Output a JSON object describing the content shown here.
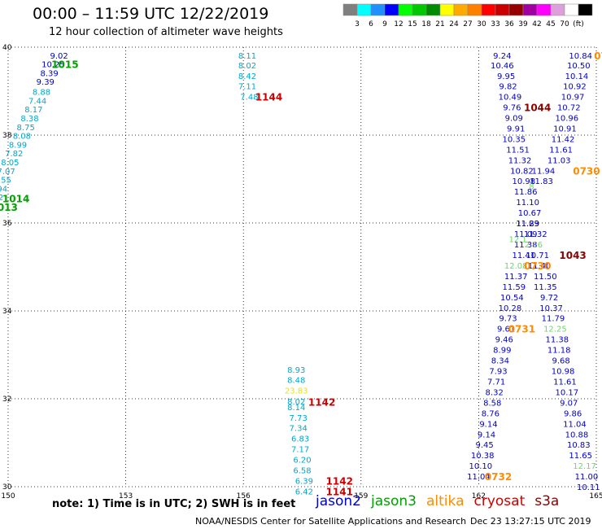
{
  "title": "00:00 – 11:59 UTC 12/22/2019",
  "subtitle": "12 hour collection of altimeter wave heights",
  "colorbar": {
    "colors": [
      "#7f7f7f",
      "#00ffff",
      "#1e90ff",
      "#0000ff",
      "#00ff00",
      "#00c800",
      "#008c00",
      "#ffff00",
      "#ffaa00",
      "#ff7f00",
      "#ff0000",
      "#c80000",
      "#960000",
      "#a000a0",
      "#ff00ff",
      "#dda0dd",
      "#ffffff",
      "#000000"
    ],
    "labels": [
      "3",
      "6",
      "9",
      "12",
      "15",
      "18",
      "21",
      "24",
      "27",
      "30",
      "33",
      "36",
      "39",
      "42",
      "45",
      "70",
      "(ft)"
    ]
  },
  "axes": {
    "lat_labels": [
      "40",
      "38",
      "36",
      "34",
      "32",
      "30"
    ],
    "lon_labels": [
      "150",
      "153",
      "156",
      "159",
      "162",
      "165"
    ],
    "lat_range": [
      30,
      40
    ],
    "lon_range": [
      150,
      165
    ]
  },
  "colors": {
    "jason2": "#0000cc",
    "jason3": "#00a000",
    "altika": "#ff8c00",
    "cryosat": "#cc0000",
    "s3a": "#8b0000",
    "cyan": "#00a8cc",
    "lightgreen": "#66dd66",
    "yellow": "#e6e600",
    "darkgreen": "#007000"
  },
  "tracks": [
    {
      "sat": "jason2",
      "points": [
        {
          "lon": 151.3,
          "lat": 39.8,
          "v": "9.02"
        },
        {
          "lon": 151.15,
          "lat": 39.6,
          "v": "10.25"
        },
        {
          "lon": 151.05,
          "lat": 39.4,
          "v": "8.39"
        },
        {
          "lon": 150.95,
          "lat": 39.2,
          "v": "9.39"
        }
      ]
    },
    {
      "sat": "cyan",
      "points": [
        {
          "lon": 150.85,
          "lat": 38.97,
          "v": "8.88"
        },
        {
          "lon": 150.75,
          "lat": 38.77,
          "v": "7.44"
        },
        {
          "lon": 150.65,
          "lat": 38.57,
          "v": "8.17"
        },
        {
          "lon": 150.55,
          "lat": 38.37,
          "v": "8.38"
        },
        {
          "lon": 150.45,
          "lat": 38.17,
          "v": "8.75"
        },
        {
          "lon": 150.35,
          "lat": 37.97,
          "v": "8.08"
        },
        {
          "lon": 150.25,
          "lat": 37.77,
          "v": "8.99"
        },
        {
          "lon": 150.15,
          "lat": 37.57,
          "v": "7.82"
        },
        {
          "lon": 150.05,
          "lat": 37.37,
          "v": "8.05"
        },
        {
          "lon": 149.95,
          "lat": 37.17,
          "v": "7.07"
        },
        {
          "lon": 149.85,
          "lat": 36.97,
          "v": "7.55"
        },
        {
          "lon": 149.75,
          "lat": 36.77,
          "v": "6.94"
        },
        {
          "lon": 149.65,
          "lat": 36.57,
          "v": "7.52"
        },
        {
          "lon": 149.55,
          "lat": 36.37,
          "v": "7.29"
        },
        {
          "lon": 156.1,
          "lat": 39.8,
          "v": "8.11"
        },
        {
          "lon": 156.1,
          "lat": 39.57,
          "v": "8.02"
        },
        {
          "lon": 156.1,
          "lat": 39.33,
          "v": "8.42"
        },
        {
          "lon": 156.1,
          "lat": 39.1,
          "v": "7.11"
        },
        {
          "lon": 156.15,
          "lat": 38.86,
          "v": "7.48"
        },
        {
          "lon": 157.35,
          "lat": 32.65,
          "v": "8.93"
        },
        {
          "lon": 157.35,
          "lat": 32.42,
          "v": "8.48"
        },
        {
          "lon": 157.35,
          "lat": 31.93,
          "v": "8.02"
        },
        {
          "lon": 157.35,
          "lat": 31.8,
          "v": "8.14"
        },
        {
          "lon": 157.4,
          "lat": 31.56,
          "v": "7.73"
        },
        {
          "lon": 157.4,
          "lat": 31.32,
          "v": "7.34"
        },
        {
          "lon": 157.45,
          "lat": 31.08,
          "v": "6.83"
        },
        {
          "lon": 157.45,
          "lat": 30.84,
          "v": "7.17"
        },
        {
          "lon": 157.5,
          "lat": 30.6,
          "v": "6.20"
        },
        {
          "lon": 157.5,
          "lat": 30.36,
          "v": "6.58"
        },
        {
          "lon": 157.55,
          "lat": 30.12,
          "v": "6.39"
        },
        {
          "lon": 157.55,
          "lat": 29.88,
          "v": "6.42"
        }
      ]
    },
    {
      "sat": "yellow",
      "points": [
        {
          "lon": 157.35,
          "lat": 32.18,
          "v": "23.83"
        }
      ]
    },
    {
      "sat": "jason2",
      "points": [
        {
          "lon": 162.6,
          "lat": 39.8,
          "v": "9.24"
        },
        {
          "lon": 162.6,
          "lat": 39.57,
          "v": "10.46"
        },
        {
          "lon": 162.7,
          "lat": 39.33,
          "v": "9.95"
        },
        {
          "lon": 162.75,
          "lat": 39.1,
          "v": "9.82"
        },
        {
          "lon": 162.8,
          "lat": 38.86,
          "v": "10.49"
        },
        {
          "lon": 162.85,
          "lat": 38.62,
          "v": "9.76"
        },
        {
          "lon": 162.9,
          "lat": 38.38,
          "v": "9.09"
        },
        {
          "lon": 162.95,
          "lat": 38.14,
          "v": "9.91"
        },
        {
          "lon": 162.9,
          "lat": 37.9,
          "v": "10.35"
        },
        {
          "lon": 163.0,
          "lat": 37.66,
          "v": "11.51"
        },
        {
          "lon": 163.05,
          "lat": 37.42,
          "v": "11.32"
        },
        {
          "lon": 163.1,
          "lat": 37.18,
          "v": "10.82"
        },
        {
          "lon": 163.15,
          "lat": 36.94,
          "v": "10.98"
        },
        {
          "lon": 163.2,
          "lat": 36.7,
          "v": "11.86"
        },
        {
          "lon": 163.25,
          "lat": 36.46,
          "v": "11.10"
        },
        {
          "lon": 163.3,
          "lat": 36.22,
          "v": "10.67"
        },
        {
          "lon": 163.25,
          "lat": 35.98,
          "v": "11.29"
        },
        {
          "lon": 163.2,
          "lat": 35.74,
          "v": "11.09"
        },
        {
          "lon": 163.2,
          "lat": 35.5,
          "v": "11.38"
        },
        {
          "lon": 163.15,
          "lat": 35.26,
          "v": "11.41"
        },
        {
          "lon": 162.95,
          "lat": 34.78,
          "v": "11.37"
        },
        {
          "lon": 162.9,
          "lat": 34.54,
          "v": "11.59"
        },
        {
          "lon": 162.85,
          "lat": 34.3,
          "v": "10.54"
        },
        {
          "lon": 162.8,
          "lat": 34.06,
          "v": "10.28"
        },
        {
          "lon": 162.75,
          "lat": 33.82,
          "v": "9.73"
        },
        {
          "lon": 162.7,
          "lat": 33.58,
          "v": "9.61"
        },
        {
          "lon": 162.65,
          "lat": 33.34,
          "v": "9.46"
        },
        {
          "lon": 162.6,
          "lat": 33.1,
          "v": "8.99"
        },
        {
          "lon": 162.55,
          "lat": 32.86,
          "v": "8.34"
        },
        {
          "lon": 162.5,
          "lat": 32.62,
          "v": "7.93"
        },
        {
          "lon": 162.45,
          "lat": 32.38,
          "v": "7.71"
        },
        {
          "lon": 162.4,
          "lat": 32.14,
          "v": "8.32"
        },
        {
          "lon": 162.35,
          "lat": 31.9,
          "v": "8.58"
        },
        {
          "lon": 162.3,
          "lat": 31.66,
          "v": "8.76"
        },
        {
          "lon": 162.25,
          "lat": 31.42,
          "v": "9.14"
        },
        {
          "lon": 162.2,
          "lat": 31.18,
          "v": "9.14"
        },
        {
          "lon": 162.15,
          "lat": 30.94,
          "v": "9.45"
        },
        {
          "lon": 162.1,
          "lat": 30.7,
          "v": "10.38"
        },
        {
          "lon": 162.05,
          "lat": 30.46,
          "v": "10.10"
        },
        {
          "lon": 162.0,
          "lat": 30.22,
          "v": "11.04"
        }
      ]
    },
    {
      "sat": "jason2",
      "points": [
        {
          "lon": 164.6,
          "lat": 39.8,
          "v": "10.84"
        },
        {
          "lon": 164.55,
          "lat": 39.57,
          "v": "10.50"
        },
        {
          "lon": 164.5,
          "lat": 39.33,
          "v": "10.14"
        },
        {
          "lon": 164.45,
          "lat": 39.1,
          "v": "10.92"
        },
        {
          "lon": 164.4,
          "lat": 38.86,
          "v": "10.97"
        },
        {
          "lon": 164.3,
          "lat": 38.62,
          "v": "10.72"
        },
        {
          "lon": 164.25,
          "lat": 38.38,
          "v": "10.96"
        },
        {
          "lon": 164.2,
          "lat": 38.14,
          "v": "10.91"
        },
        {
          "lon": 164.15,
          "lat": 37.9,
          "v": "11.42"
        },
        {
          "lon": 164.1,
          "lat": 37.66,
          "v": "11.61"
        },
        {
          "lon": 164.05,
          "lat": 37.42,
          "v": "11.03"
        },
        {
          "lon": 163.65,
          "lat": 37.18,
          "v": "11.94"
        },
        {
          "lon": 163.6,
          "lat": 36.94,
          "v": "11.83"
        },
        {
          "lon": 163.25,
          "lat": 35.98,
          "v": "11.83"
        },
        {
          "lon": 163.45,
          "lat": 35.74,
          "v": "11.32"
        },
        {
          "lon": 163.5,
          "lat": 35.26,
          "v": "10.71"
        },
        {
          "lon": 163.55,
          "lat": 35.02,
          "v": "11.40"
        },
        {
          "lon": 163.7,
          "lat": 34.78,
          "v": "11.50"
        },
        {
          "lon": 163.7,
          "lat": 34.54,
          "v": "11.35"
        },
        {
          "lon": 163.8,
          "lat": 34.3,
          "v": "9.72"
        },
        {
          "lon": 163.85,
          "lat": 34.06,
          "v": "10.37"
        },
        {
          "lon": 163.9,
          "lat": 33.82,
          "v": "11.79"
        },
        {
          "lon": 164.0,
          "lat": 33.34,
          "v": "11.38"
        },
        {
          "lon": 164.05,
          "lat": 33.1,
          "v": "11.18"
        },
        {
          "lon": 164.1,
          "lat": 32.86,
          "v": "9.68"
        },
        {
          "lon": 164.15,
          "lat": 32.62,
          "v": "10.98"
        },
        {
          "lon": 164.2,
          "lat": 32.38,
          "v": "11.61"
        },
        {
          "lon": 164.25,
          "lat": 32.14,
          "v": "10.17"
        },
        {
          "lon": 164.3,
          "lat": 31.9,
          "v": "9.07"
        },
        {
          "lon": 164.4,
          "lat": 31.66,
          "v": "9.86"
        },
        {
          "lon": 164.45,
          "lat": 31.42,
          "v": "11.04"
        },
        {
          "lon": 164.5,
          "lat": 31.18,
          "v": "10.88"
        },
        {
          "lon": 164.55,
          "lat": 30.94,
          "v": "10.83"
        },
        {
          "lon": 164.6,
          "lat": 30.7,
          "v": "11.65"
        },
        {
          "lon": 164.75,
          "lat": 30.22,
          "v": "11.00"
        },
        {
          "lon": 164.8,
          "lat": 29.98,
          "v": "10.11"
        }
      ]
    },
    {
      "sat": "lightgreen",
      "points": [
        {
          "lon": 163.35,
          "lat": 36.82,
          "v": "8"
        },
        {
          "lon": 163.0,
          "lat": 35.62,
          "v": "12.1"
        },
        {
          "lon": 163.4,
          "lat": 35.5,
          "v": "2.16"
        },
        {
          "lon": 162.95,
          "lat": 35.02,
          "v": "12.08"
        },
        {
          "lon": 163.95,
          "lat": 33.58,
          "v": "12.25"
        },
        {
          "lon": 164.7,
          "lat": 30.46,
          "v": "12.17"
        }
      ]
    }
  ],
  "tags": [
    {
      "sat": "jason3",
      "lon": 151.45,
      "lat": 39.6,
      "v": "1015"
    },
    {
      "sat": "jason3",
      "lon": 150.2,
      "lat": 36.55,
      "v": "1014"
    },
    {
      "sat": "jason3",
      "lon": 149.9,
      "lat": 36.35,
      "v": "1013"
    },
    {
      "sat": "cryosat",
      "lon": 156.65,
      "lat": 38.86,
      "v": "1144"
    },
    {
      "sat": "cryosat",
      "lon": 158.0,
      "lat": 31.92,
      "v": "1142"
    },
    {
      "sat": "cryosat",
      "lon": 158.45,
      "lat": 30.12,
      "v": "1142"
    },
    {
      "sat": "cryosat",
      "lon": 158.45,
      "lat": 29.88,
      "v": "1141"
    },
    {
      "sat": "s3a",
      "lon": 163.5,
      "lat": 38.62,
      "v": "1044"
    },
    {
      "sat": "s3a",
      "lon": 164.4,
      "lat": 35.26,
      "v": "1043"
    },
    {
      "sat": "altika",
      "lon": 164.75,
      "lat": 37.18,
      "v": "0730"
    },
    {
      "sat": "altika",
      "lon": 163.5,
      "lat": 35.02,
      "v": "0730"
    },
    {
      "sat": "altika",
      "lon": 163.1,
      "lat": 33.58,
      "v": "0731"
    },
    {
      "sat": "altika",
      "lon": 162.5,
      "lat": 30.22,
      "v": "0732"
    },
    {
      "sat": "altika",
      "lon": 165.2,
      "lat": 39.8,
      "v": "073"
    },
    {
      "sat": "cryosat",
      "lon": 165.45,
      "lat": 31.66,
      "v": "1"
    }
  ],
  "note": "note:  1) Time is in UTC;  2) SWH is in feet",
  "legend": [
    {
      "label": "jason2",
      "sat": "jason2"
    },
    {
      "label": "jason3",
      "sat": "jason3"
    },
    {
      "label": "altika",
      "sat": "altika"
    },
    {
      "label": "cryosat",
      "sat": "cryosat"
    },
    {
      "label": "s3a",
      "sat": "s3a"
    }
  ],
  "footer_left": "NOAA/NESDIS Center for Satellite Applications and Research",
  "footer_right": "Dec 23 13:27:15 UTC 2019"
}
